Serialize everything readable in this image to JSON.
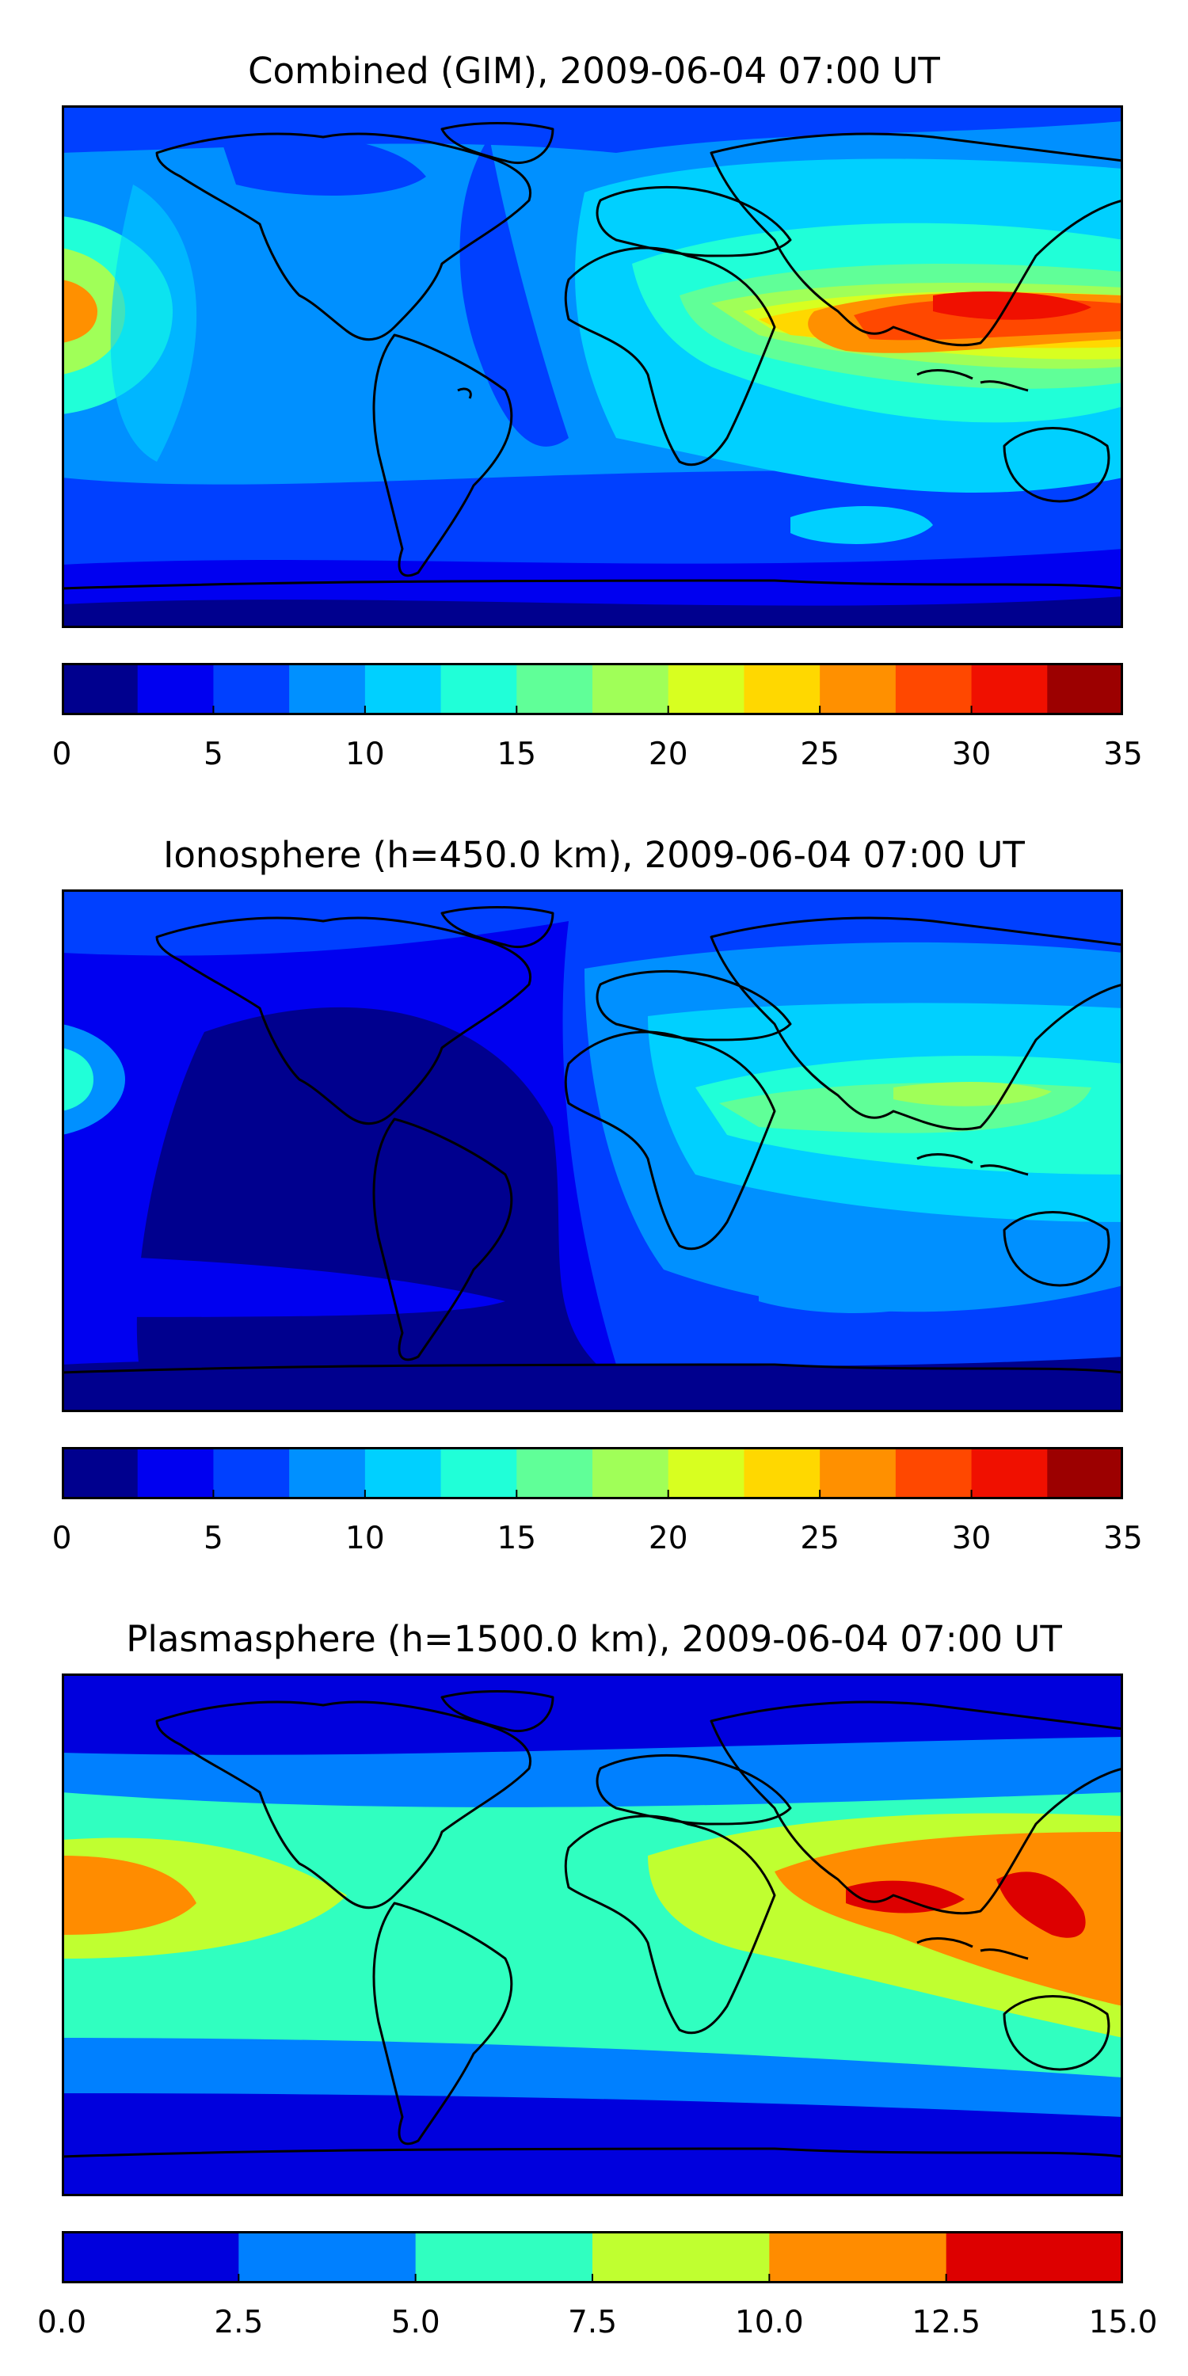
{
  "chart_data": [
    {
      "type": "heatmap",
      "title": "Combined (GIM), 2009-06-04 07:00 UT",
      "colorbar": {
        "levels": [
          0,
          2.5,
          5,
          7.5,
          10,
          12.5,
          15,
          17.5,
          20,
          22.5,
          25,
          27.5,
          30,
          32.5,
          35
        ],
        "ticks": [
          0,
          5,
          10,
          15,
          20,
          25,
          30,
          35
        ],
        "tick_labels": [
          "0",
          "5",
          "10",
          "15",
          "20",
          "25",
          "30",
          "35"
        ],
        "colors": [
          "#00008e",
          "#0000f0",
          "#0040ff",
          "#0090ff",
          "#00d0ff",
          "#20ffd8",
          "#60ff98",
          "#a0ff58",
          "#d8ff20",
          "#ffd800",
          "#ff9000",
          "#ff4800",
          "#f01000",
          "#9c0000"
        ]
      },
      "grid": false,
      "features": [
        {
          "lon": -180,
          "lat": 22,
          "value": 27
        },
        {
          "lon": -160,
          "lat": 22,
          "value": 14
        },
        {
          "lon": -120,
          "lat": 15,
          "value": 11
        },
        {
          "lon": -100,
          "lat": 50,
          "value": 7
        },
        {
          "lon": -60,
          "lat": -20,
          "value": 9
        },
        {
          "lon": -25,
          "lat": 10,
          "value": 6
        },
        {
          "lon": 20,
          "lat": 20,
          "value": 14
        },
        {
          "lon": 60,
          "lat": 15,
          "value": 23
        },
        {
          "lon": 90,
          "lat": 10,
          "value": 30
        },
        {
          "lon": 140,
          "lat": 15,
          "value": 32
        },
        {
          "lon": 130,
          "lat": -25,
          "value": 16
        },
        {
          "lon": 100,
          "lat": -45,
          "value": 12
        },
        {
          "lon": 0,
          "lat": -75,
          "value": 4
        }
      ]
    },
    {
      "type": "heatmap",
      "title": "Ionosphere  (h=450.0 km), 2009-06-04 07:00 UT",
      "colorbar": {
        "levels": [
          0,
          2.5,
          5,
          7.5,
          10,
          12.5,
          15,
          17.5,
          20,
          22.5,
          25,
          27.5,
          30,
          32.5,
          35
        ],
        "ticks": [
          0,
          5,
          10,
          15,
          20,
          25,
          30,
          35
        ],
        "tick_labels": [
          "0",
          "5",
          "10",
          "15",
          "20",
          "25",
          "30",
          "35"
        ],
        "colors": [
          "#00008e",
          "#0000f0",
          "#0040ff",
          "#0090ff",
          "#00d0ff",
          "#20ffd8",
          "#60ff98",
          "#a0ff58",
          "#d8ff20",
          "#ffd800",
          "#ff9000",
          "#ff4800",
          "#f01000",
          "#9c0000"
        ]
      },
      "grid": false,
      "features": [
        {
          "lon": -180,
          "lat": 22,
          "value": 14
        },
        {
          "lon": -120,
          "lat": 15,
          "value": 4
        },
        {
          "lon": -60,
          "lat": 0,
          "value": 2
        },
        {
          "lon": 20,
          "lat": 10,
          "value": 8
        },
        {
          "lon": 60,
          "lat": 10,
          "value": 14
        },
        {
          "lon": 110,
          "lat": 20,
          "value": 17
        },
        {
          "lon": 140,
          "lat": 25,
          "value": 15
        },
        {
          "lon": 100,
          "lat": -40,
          "value": 9
        },
        {
          "lon": 0,
          "lat": -75,
          "value": 2
        }
      ]
    },
    {
      "type": "heatmap",
      "title": "Plasmasphere (h=1500.0 km), 2009-06-04 07:00 UT",
      "colorbar": {
        "levels": [
          0,
          2.5,
          5,
          7.5,
          10,
          12.5,
          15
        ],
        "ticks": [
          0,
          2.5,
          5,
          7.5,
          10,
          12.5,
          15
        ],
        "tick_labels": [
          "0.0",
          "2.5",
          "5.0",
          "7.5",
          "10.0",
          "12.5",
          "15.0"
        ],
        "colors": [
          "#0000dd",
          "#0080ff",
          "#30ffc0",
          "#c0ff30",
          "#ff8c00",
          "#dd0000"
        ]
      },
      "grid": false,
      "features": [
        {
          "lon": -180,
          "lat": 0,
          "value": 11
        },
        {
          "lon": -110,
          "lat": 0,
          "value": 9
        },
        {
          "lon": -60,
          "lat": 0,
          "value": 6
        },
        {
          "lon": 20,
          "lat": 0,
          "value": 9
        },
        {
          "lon": 95,
          "lat": 10,
          "value": 12
        },
        {
          "lon": 110,
          "lat": 10,
          "value": 13
        },
        {
          "lon": 155,
          "lat": 5,
          "value": 13.5
        },
        {
          "lon": 0,
          "lat": 60,
          "value": 2
        },
        {
          "lon": 0,
          "lat": -60,
          "value": 2
        }
      ]
    }
  ]
}
